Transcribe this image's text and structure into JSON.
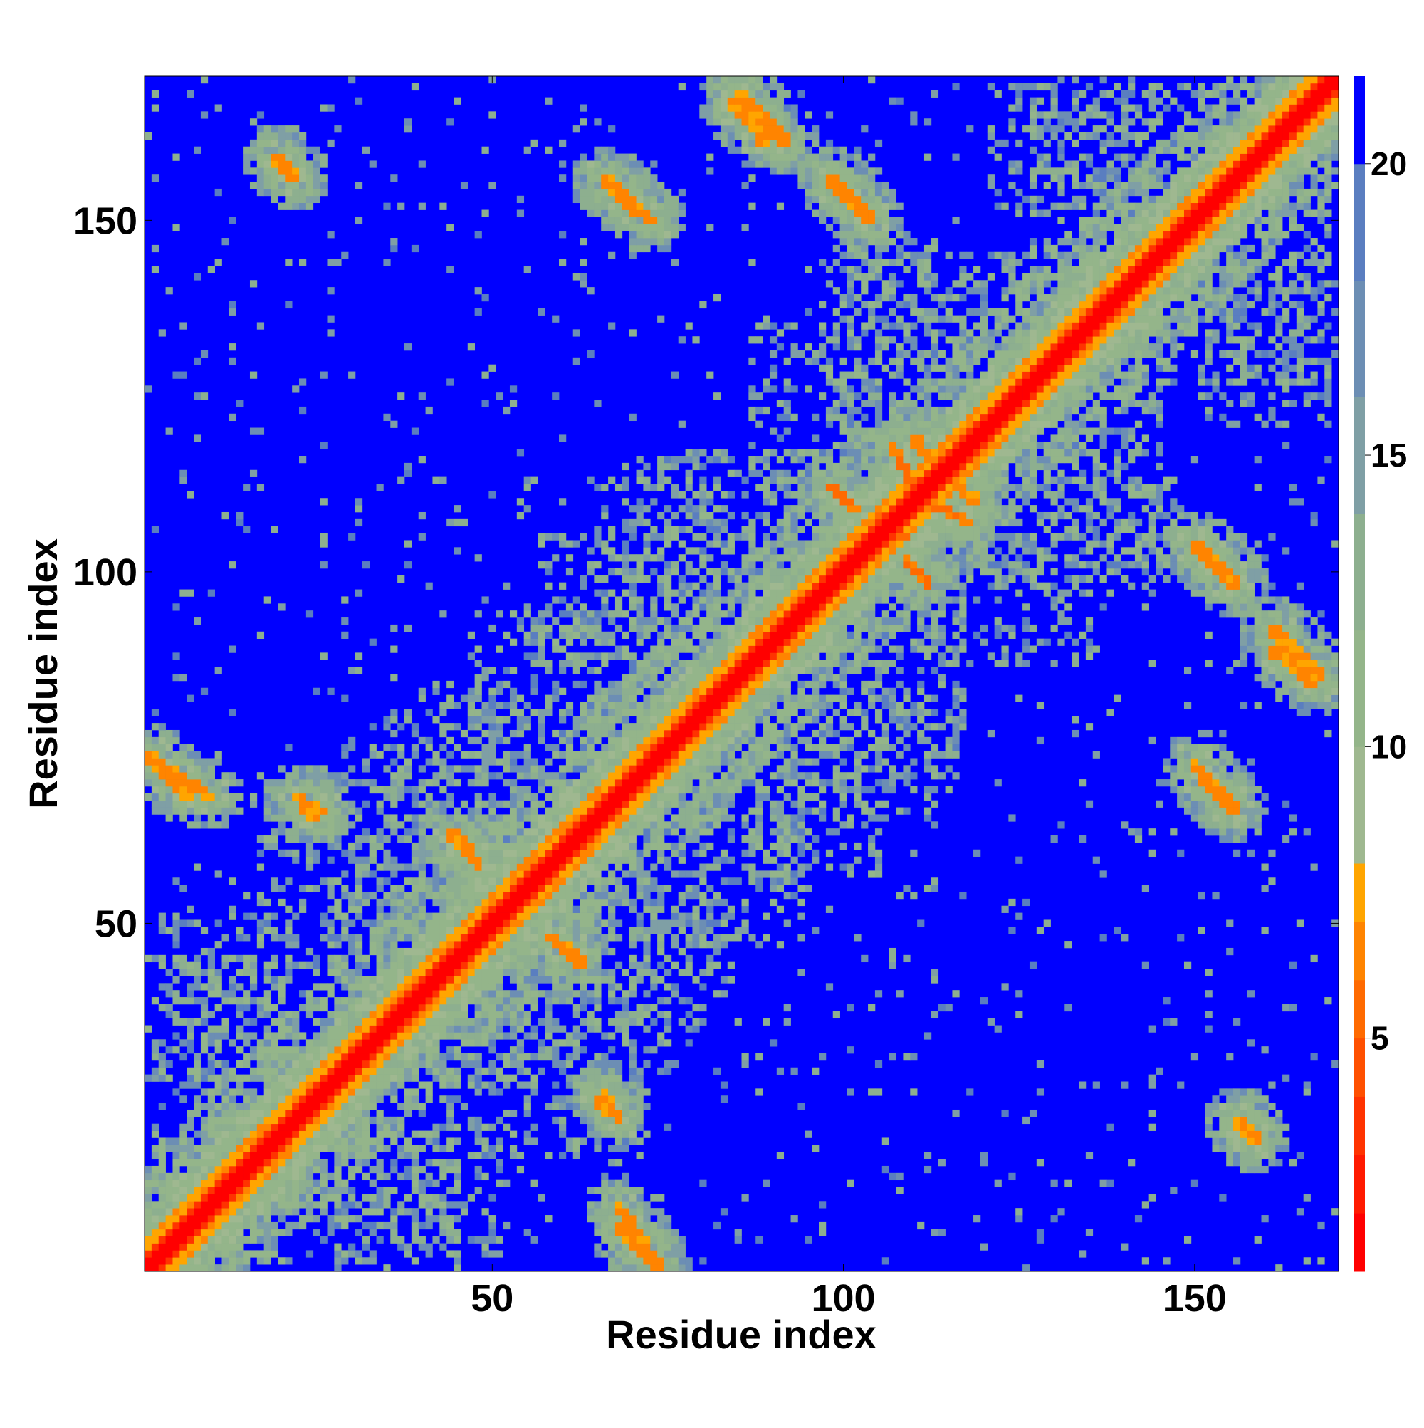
{
  "chart_data": {
    "type": "heatmap",
    "title": "",
    "xlabel": "Residue index",
    "ylabel": "Residue index",
    "n_residues": 170,
    "xlim": [
      1,
      170
    ],
    "ylim": [
      1,
      170
    ],
    "x_ticks": [
      50,
      100,
      150
    ],
    "y_ticks": [
      50,
      100,
      150
    ],
    "x_tick_labels": [
      "50",
      "100",
      "150"
    ],
    "y_tick_labels": [
      "50",
      "100",
      "150"
    ],
    "colorbar": {
      "ticks": [
        5,
        10,
        15,
        20
      ],
      "tick_labels": [
        "5",
        "10",
        "15",
        "20"
      ],
      "range": [
        1,
        21.5
      ],
      "bands": [
        {
          "upper": 2,
          "color": "#ff0000"
        },
        {
          "upper": 3,
          "color": "#ff1a00"
        },
        {
          "upper": 4,
          "color": "#ff3300"
        },
        {
          "upper": 5,
          "color": "#ff5000"
        },
        {
          "upper": 6,
          "color": "#ff6a00"
        },
        {
          "upper": 7,
          "color": "#ff8400"
        },
        {
          "upper": 8,
          "color": "#ffa500"
        },
        {
          "upper": 10,
          "color": "#9fb890"
        },
        {
          "upper": 12,
          "color": "#94b58a"
        },
        {
          "upper": 14,
          "color": "#8daf8f"
        },
        {
          "upper": 16,
          "color": "#7f9fa5"
        },
        {
          "upper": 18,
          "color": "#6c8eb4"
        },
        {
          "upper": 20,
          "color": "#5a7ec0"
        },
        {
          "upper": 21.5,
          "color": "#0000ff"
        }
      ]
    },
    "values_description_key": "distance matrix; diagonal ~2, contacts 4-8, background >20",
    "contact_segments": [
      {
        "x": [
          2,
          10
        ],
        "y": [
          73,
          68
        ],
        "v": 6
      },
      {
        "x": [
          20,
          22
        ],
        "y": [
          159,
          156
        ],
        "v": 6
      },
      {
        "x": [
          23,
          25
        ],
        "y": [
          67,
          65
        ],
        "v": 6
      },
      {
        "x": [
          66,
          71
        ],
        "y": [
          156,
          151
        ],
        "v": 6
      },
      {
        "x": [
          84,
          89
        ],
        "y": [
          167,
          161
        ],
        "v": 6
      },
      {
        "x": [
          98,
          104
        ],
        "y": [
          156,
          150
        ],
        "v": 6
      },
      {
        "x": [
          107,
          110
        ],
        "y": [
          118,
          112
        ],
        "v": 5
      },
      {
        "x": [
          105,
          108
        ],
        "y": [
          109,
          105
        ],
        "v": 5
      },
      {
        "x": [
          109,
          112
        ],
        "y": [
          102,
          98
        ],
        "v": 5
      },
      {
        "x": [
          113,
          119
        ],
        "y": [
          115,
          110
        ],
        "v": 6
      },
      {
        "x": [
          150,
          156
        ],
        "y": [
          104,
          98
        ],
        "v": 6
      },
      {
        "x": [
          161,
          168
        ],
        "y": [
          92,
          85
        ],
        "v": 6
      },
      {
        "x": [
          150,
          155
        ],
        "y": [
          73,
          66
        ],
        "v": 6
      },
      {
        "x": [
          156,
          159
        ],
        "y": [
          22,
          19
        ],
        "v": 6
      },
      {
        "x": [
          68,
          74
        ],
        "y": [
          7,
          1
        ],
        "v": 6
      },
      {
        "x": [
          66,
          68
        ],
        "y": [
          26,
          22
        ],
        "v": 6
      },
      {
        "x": [
          46,
          48
        ],
        "y": [
          61,
          58
        ],
        "v": 6
      },
      {
        "x": [
          54,
          58
        ],
        "y": [
          56,
          55
        ],
        "v": 6
      },
      {
        "x": [
          60,
          63
        ],
        "y": [
          47,
          44
        ],
        "v": 6
      }
    ]
  }
}
